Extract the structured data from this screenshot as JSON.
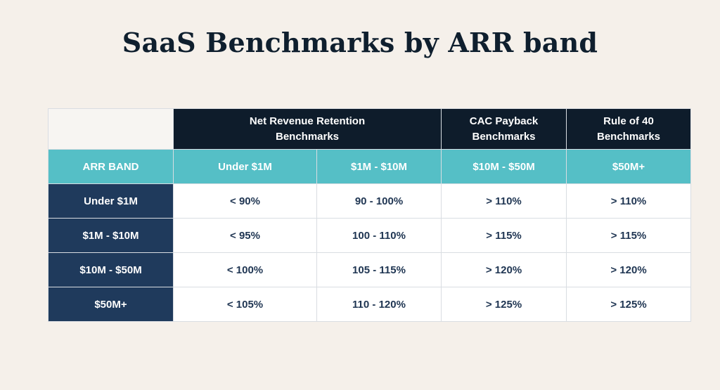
{
  "title": "SaaS Benchmarks by ARR band",
  "table": {
    "group_headers": [
      {
        "line1": "Net Revenue Retention",
        "line2": "Benchmarks"
      },
      {
        "line1": "CAC Payback",
        "line2": "Benchmarks"
      },
      {
        "line1": "Rule of 40",
        "line2": "Benchmarks"
      }
    ],
    "sub_headers": [
      "ARR BAND",
      "Under $1M",
      "$1M - $10M",
      "$10M - $50M",
      "$50M+"
    ],
    "rows": [
      {
        "band": "Under $1M",
        "values": [
          "< 90%",
          "90 - 100%",
          "> 110%",
          "> 110%"
        ]
      },
      {
        "band": "$1M - $10M",
        "values": [
          "< 95%",
          "100 - 110%",
          "> 115%",
          "> 115%"
        ]
      },
      {
        "band": "$10M - $50M",
        "values": [
          "< 100%",
          "105 - 115%",
          "> 120%",
          "> 120%"
        ]
      },
      {
        "band": "$50M+",
        "values": [
          "< 105%",
          "110 - 120%",
          "> 125%",
          "> 125%"
        ]
      }
    ]
  },
  "colors": {
    "background": "#f5f0ea",
    "title": "#0f1f2e",
    "group_header_bg": "#0e1c2b",
    "sub_header_bg": "#55bfc6",
    "row_header_bg": "#1f3a5c",
    "cell_text": "#1f3552"
  }
}
